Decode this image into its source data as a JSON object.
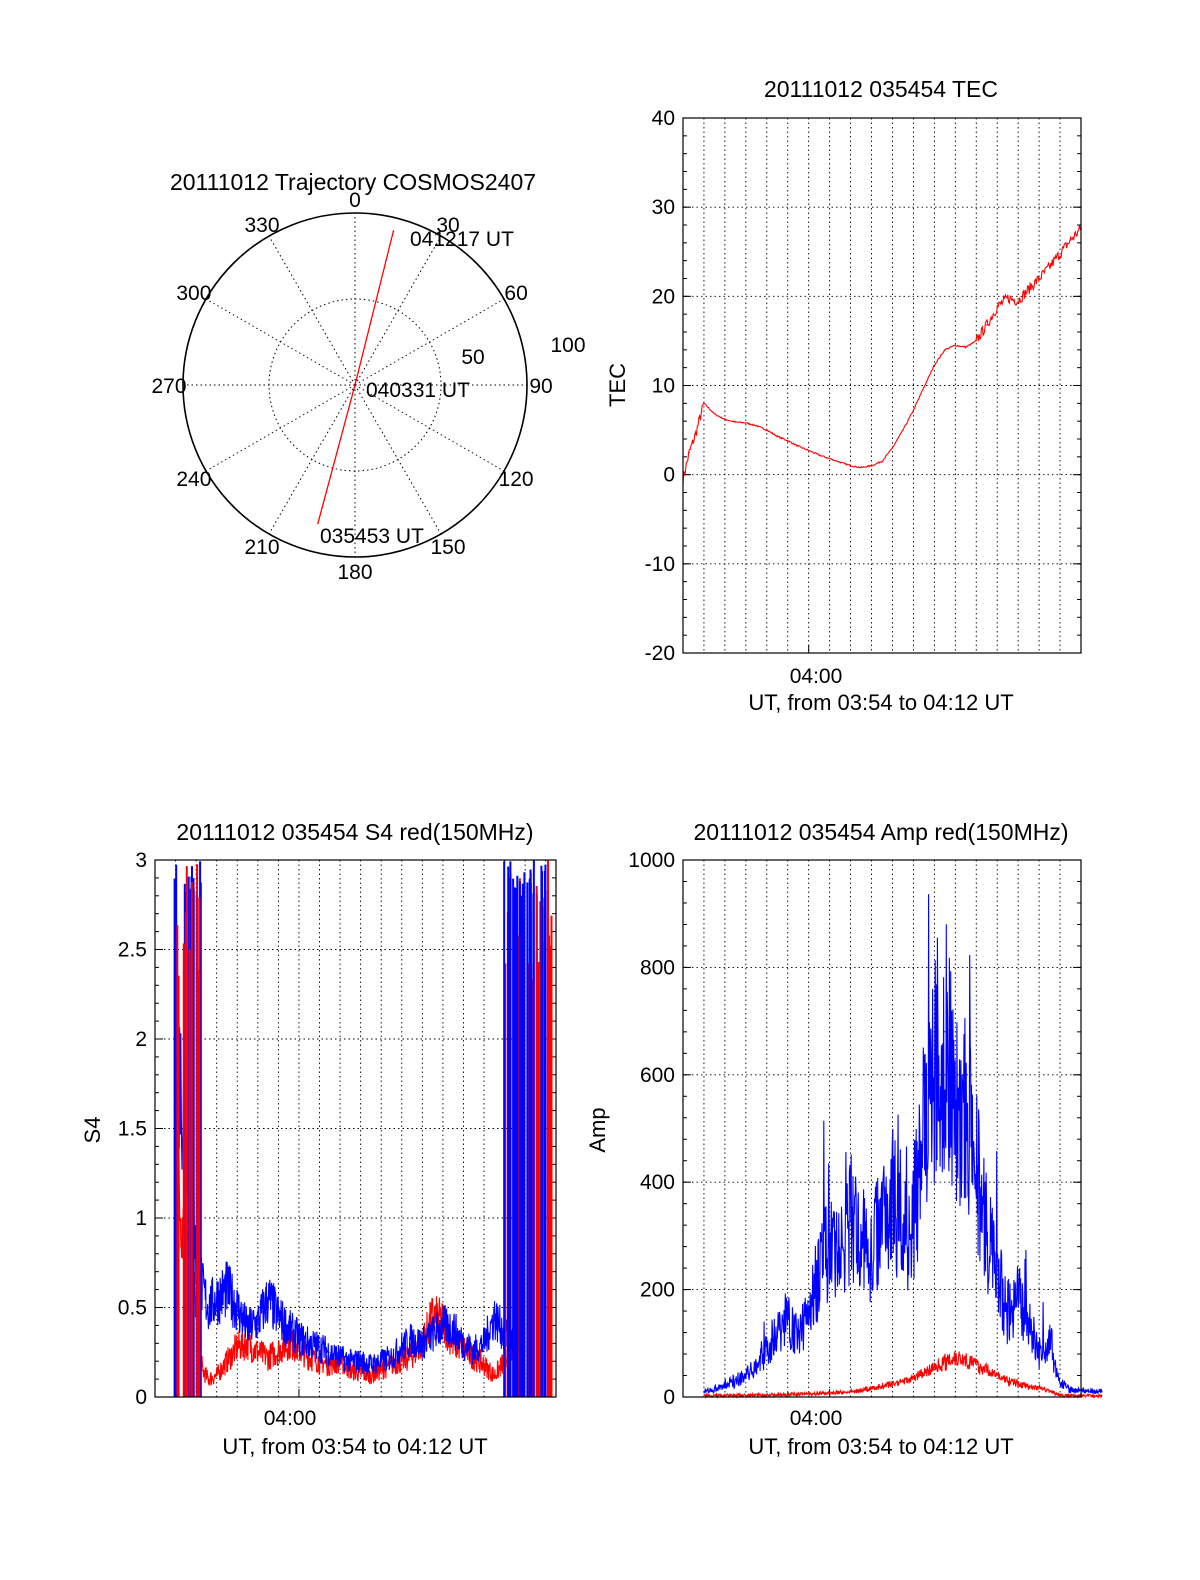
{
  "colors": {
    "red": "#ff0000",
    "blue": "#0000ff",
    "axis": "#000000",
    "grid": "#000000"
  },
  "chart_data": [
    {
      "type": "polar",
      "title": "20111012 Trajectory COSMOS2407",
      "angle_ticks": [
        "0",
        "30",
        "60",
        "90",
        "120",
        "150",
        "180",
        "210",
        "240",
        "270",
        "300",
        "330"
      ],
      "radius_labels": [
        "50",
        "100"
      ],
      "grid": true,
      "series": [
        {
          "color": "red",
          "points": [
            {
              "label": "035453 UT",
              "azimuth_deg": 195,
              "elevation_deg": 15
            },
            {
              "label": "040331 UT",
              "azimuth_deg": 0,
              "elevation_deg": 90
            },
            {
              "label": "041217 UT",
              "azimuth_deg": 14,
              "elevation_deg": 7
            }
          ]
        }
      ]
    },
    {
      "type": "line",
      "title": "20111012 035454 TEC",
      "xlabel": "UT, from 03:54 to 04:12 UT",
      "ylabel": "TEC",
      "x_ticks": [
        "04:00"
      ],
      "y_ticks": [
        "-20",
        "-10",
        "0",
        "10",
        "20",
        "30",
        "40"
      ],
      "ylim": [
        -20,
        40
      ],
      "grid": true,
      "series": [
        {
          "color": "red",
          "x_min": [
            0,
            0.3,
            0.6,
            1,
            1.5,
            2,
            2.5,
            3,
            3.5,
            4,
            4.5,
            5,
            5.5,
            6,
            6.5,
            7,
            7.5,
            8,
            8.5,
            9,
            9.5,
            10,
            10.5,
            11,
            11.5,
            12,
            12.5,
            13,
            13.5,
            14,
            14.5,
            15,
            15.5,
            16,
            16.5,
            17,
            17.5,
            18,
            18.5,
            19
          ],
          "values": [
            -0.5,
            2.5,
            4.5,
            8,
            6.8,
            6.2,
            5.9,
            5.8,
            5.5,
            5.0,
            4.3,
            3.8,
            3.2,
            2.7,
            2.2,
            1.8,
            1.4,
            1.0,
            0.8,
            1.0,
            1.5,
            3.0,
            5.0,
            7.2,
            9.8,
            12.3,
            14.0,
            14.5,
            14.3,
            15.0,
            16.8,
            18.8,
            19.8,
            19.5,
            20.8,
            22.0,
            23.3,
            24.8,
            26.3,
            27.6
          ]
        }
      ]
    },
    {
      "type": "line",
      "title": "20111012 035454 S4 red(150MHz)",
      "xlabel": "UT, from 03:54 to 04:12 UT",
      "ylabel": "S4",
      "x_ticks": [
        "04:00"
      ],
      "y_ticks": [
        "0",
        "0.5",
        "1",
        "1.5",
        "2",
        "2.5",
        "3"
      ],
      "ylim": [
        0,
        3
      ],
      "grid": true,
      "series": [
        {
          "color": "red",
          "x_min": [
            0,
            0.5,
            1,
            1.3,
            1.6,
            2,
            2.5,
            3,
            3.5,
            4,
            4.5,
            5,
            5.5,
            6,
            6.5,
            7,
            7.5,
            8,
            8.5,
            9,
            9.5,
            10,
            10.5,
            11,
            11.5,
            12,
            12.5,
            13,
            13.5,
            14,
            14.5,
            15,
            15.5,
            16,
            16.5
          ],
          "values": [
            1.2,
            0.9,
            0.5,
            0.15,
            0.1,
            0.12,
            0.2,
            0.28,
            0.3,
            0.25,
            0.22,
            0.26,
            0.3,
            0.27,
            0.22,
            0.2,
            0.18,
            0.2,
            0.15,
            0.13,
            0.12,
            0.15,
            0.18,
            0.2,
            0.23,
            0.3,
            0.45,
            0.42,
            0.3,
            0.28,
            0.22,
            0.18,
            0.12,
            0.2,
            0.3
          ]
        },
        {
          "color": "blue",
          "x_min": [
            0,
            0.5,
            1,
            1.3,
            1.6,
            2,
            2.5,
            3,
            3.5,
            4,
            4.5,
            5,
            5.5,
            6,
            6.5,
            7,
            7.5,
            8,
            8.5,
            9,
            9.5,
            10,
            10.5,
            11,
            11.5,
            12,
            12.5,
            13,
            13.5,
            14,
            14.5,
            15,
            15.5,
            16,
            16.5
          ],
          "values": [
            2.0,
            1.5,
            0.8,
            0.6,
            0.5,
            0.55,
            0.6,
            0.5,
            0.38,
            0.42,
            0.55,
            0.45,
            0.38,
            0.33,
            0.3,
            0.28,
            0.25,
            0.22,
            0.2,
            0.2,
            0.18,
            0.2,
            0.22,
            0.28,
            0.32,
            0.3,
            0.35,
            0.4,
            0.38,
            0.3,
            0.26,
            0.3,
            0.45,
            0.35,
            0.32
          ]
        }
      ]
    },
    {
      "type": "line",
      "title": "20111012 035454 Amp red(150MHz)",
      "xlabel": "UT, from 03:54 to 04:12 UT",
      "ylabel": "Amp",
      "x_ticks": [
        "04:00"
      ],
      "y_ticks": [
        "0",
        "200",
        "400",
        "600",
        "800",
        "1000"
      ],
      "ylim": [
        0,
        1000
      ],
      "grid": true,
      "series": [
        {
          "color": "blue",
          "x_min": [
            0,
            1,
            2,
            2.5,
            3,
            3.5,
            4,
            4.5,
            5,
            5.5,
            6,
            6.5,
            7,
            7.5,
            8,
            8.5,
            9,
            9.5,
            10,
            10.5,
            11,
            11.5,
            12,
            12.5,
            13,
            13.5,
            14,
            14.5,
            15,
            15.5,
            16,
            16.5,
            17,
            17.5,
            18,
            19
          ],
          "values": [
            10,
            20,
            40,
            60,
            90,
            120,
            150,
            110,
            160,
            230,
            280,
            260,
            330,
            300,
            260,
            350,
            380,
            300,
            340,
            480,
            600,
            680,
            550,
            520,
            420,
            300,
            220,
            160,
            180,
            140,
            80,
            110,
            25,
            15,
            12,
            10
          ]
        },
        {
          "color": "red",
          "x_min": [
            0,
            2,
            3,
            4,
            5,
            6,
            7,
            8,
            9,
            10,
            10.5,
            11,
            11.5,
            12,
            12.5,
            13,
            13.5,
            14,
            14.5,
            15,
            15.5,
            16,
            16.5,
            17,
            19
          ],
          "values": [
            2,
            3,
            4,
            5,
            6,
            7,
            10,
            15,
            25,
            35,
            45,
            55,
            65,
            75,
            70,
            60,
            50,
            40,
            30,
            25,
            20,
            18,
            12,
            3,
            2
          ]
        }
      ]
    }
  ]
}
